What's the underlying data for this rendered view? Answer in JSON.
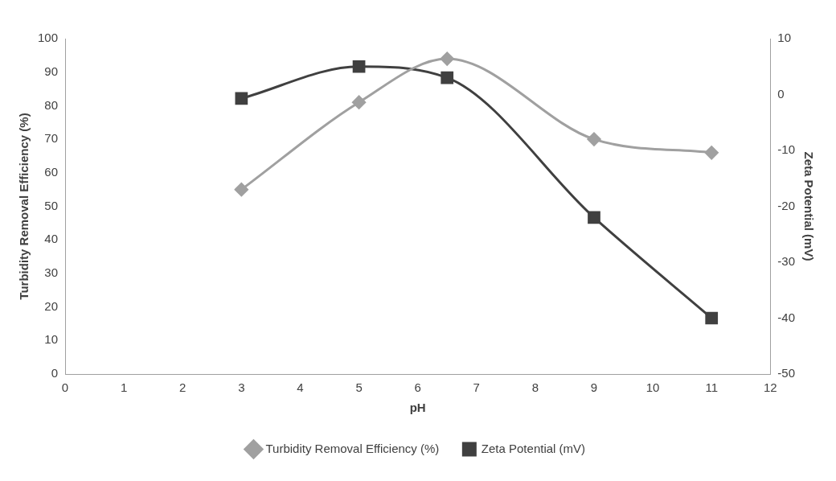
{
  "chart_data": {
    "type": "line",
    "xlabel": "pH",
    "ylabel": "Turbidity Removal Efficiency (%)",
    "y2label": "Zeta Potential (mV)",
    "xlim": [
      0,
      12
    ],
    "xticks": [
      0,
      1,
      2,
      3,
      4,
      5,
      6,
      7,
      8,
      9,
      10,
      11,
      12
    ],
    "ylim": [
      0,
      100
    ],
    "yticks": [
      0,
      10,
      20,
      30,
      40,
      50,
      60,
      70,
      80,
      90,
      100
    ],
    "y2lim": [
      -50,
      10
    ],
    "y2ticks": [
      -50,
      -40,
      -30,
      -20,
      -10,
      0,
      10
    ],
    "grid": false,
    "legend": "bottom",
    "series": [
      {
        "name": "Turbidity Removal Efficiency (%)",
        "color": "#a0a0a0",
        "marker": "diamond",
        "x": [
          3,
          5,
          6.5,
          9,
          11
        ],
        "values": [
          55,
          81,
          94,
          70,
          66
        ]
      },
      {
        "name": "Zeta Potential (mV)",
        "color": "#404040",
        "marker": "square",
        "axis": "y2",
        "x": [
          3,
          5,
          6.5,
          9,
          11
        ],
        "values": [
          -0.7,
          5,
          3,
          -22,
          -40
        ]
      }
    ]
  }
}
